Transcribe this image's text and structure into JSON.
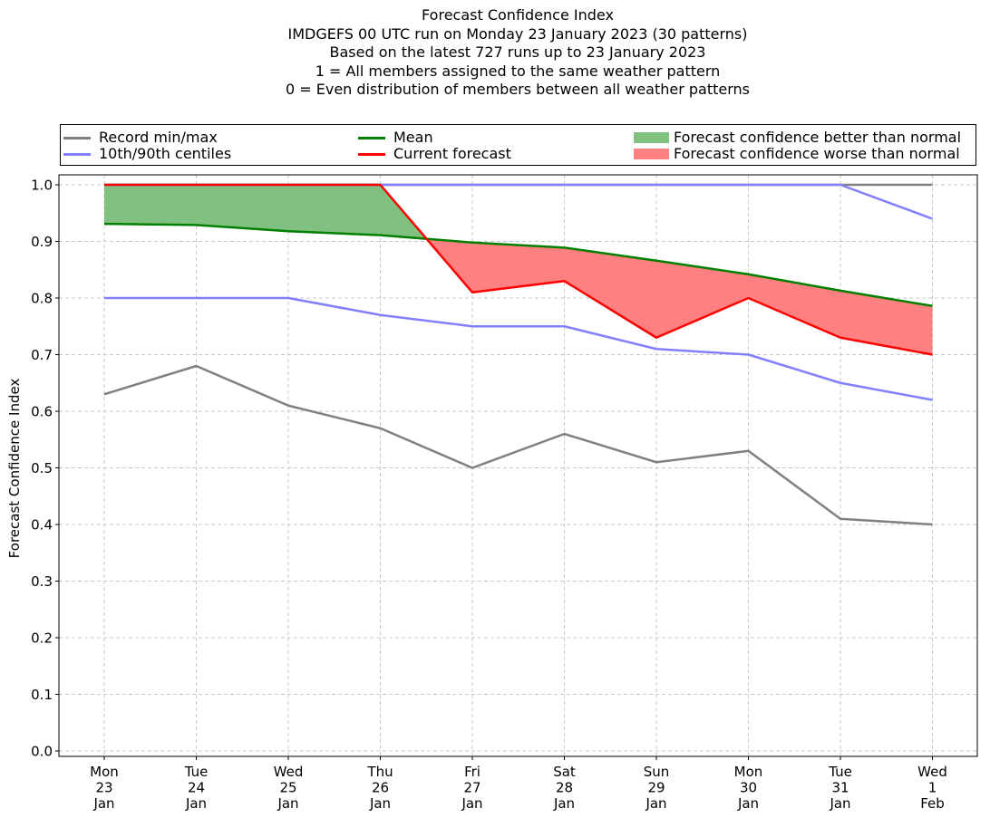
{
  "title_lines": [
    "Forecast Confidence Index",
    "IMDGEFS 00 UTC run on Monday 23 January 2023 (30 patterns)",
    "Based on the latest 727 runs up to 23 January 2023",
    "1 = All members assigned to the same weather pattern",
    "0 = Even distribution of members between all weather patterns"
  ],
  "legend": [
    {
      "label": "Record min/max",
      "kind": "line",
      "color": "#808080"
    },
    {
      "label": "10th/90th centiles",
      "kind": "line",
      "color": "#8080ff"
    },
    {
      "label": "Mean",
      "kind": "line",
      "color": "#008000"
    },
    {
      "label": "Current forecast",
      "kind": "line",
      "color": "#ff0000"
    },
    {
      "label": "Forecast confidence better than normal",
      "kind": "patch",
      "color": "#80c080"
    },
    {
      "label": "Forecast confidence worse than normal",
      "kind": "patch",
      "color": "#ff8080"
    }
  ],
  "chart_data": {
    "type": "line",
    "ylabel": "Forecast Confidence Index",
    "xlabel": "",
    "ylim": [
      0.0,
      1.0
    ],
    "yticks": [
      "0.0",
      "0.1",
      "0.2",
      "0.3",
      "0.4",
      "0.5",
      "0.6",
      "0.7",
      "0.8",
      "0.9",
      "1.0"
    ],
    "grid": true,
    "legend_position": "top",
    "categories": [
      [
        "Mon",
        "23",
        "Jan"
      ],
      [
        "Tue",
        "24",
        "Jan"
      ],
      [
        "Wed",
        "25",
        "Jan"
      ],
      [
        "Thu",
        "26",
        "Jan"
      ],
      [
        "Fri",
        "27",
        "Jan"
      ],
      [
        "Sat",
        "28",
        "Jan"
      ],
      [
        "Sun",
        "29",
        "Jan"
      ],
      [
        "Mon",
        "30",
        "Jan"
      ],
      [
        "Tue",
        "31",
        "Jan"
      ],
      [
        "Wed",
        "1",
        "Feb"
      ]
    ],
    "series": [
      {
        "name": "Record min/max",
        "role": "record-max",
        "color": "#808080",
        "values": [
          1.0,
          1.0,
          1.0,
          1.0,
          1.0,
          1.0,
          1.0,
          1.0,
          1.0,
          1.0
        ]
      },
      {
        "name": "Record min/max",
        "role": "record-min",
        "color": "#808080",
        "values": [
          0.63,
          0.68,
          0.61,
          0.57,
          0.5,
          0.56,
          0.51,
          0.53,
          0.41,
          0.4
        ]
      },
      {
        "name": "10th/90th centiles",
        "role": "p90",
        "color": "#8080ff",
        "values": [
          1.0,
          1.0,
          1.0,
          1.0,
          1.0,
          1.0,
          1.0,
          1.0,
          1.0,
          0.94
        ]
      },
      {
        "name": "10th/90th centiles",
        "role": "p10",
        "color": "#8080ff",
        "values": [
          0.8,
          0.8,
          0.8,
          0.77,
          0.75,
          0.75,
          0.71,
          0.7,
          0.65,
          0.62
        ]
      },
      {
        "name": "Mean",
        "role": "mean",
        "color": "#008000",
        "values": [
          0.931,
          0.929,
          0.918,
          0.911,
          0.898,
          0.889,
          0.866,
          0.842,
          0.813,
          0.786
        ]
      },
      {
        "name": "Current forecast",
        "role": "current",
        "color": "#ff0000",
        "values": [
          1.0,
          1.0,
          1.0,
          1.0,
          0.81,
          0.83,
          0.73,
          0.8,
          0.73,
          0.7
        ]
      }
    ]
  }
}
